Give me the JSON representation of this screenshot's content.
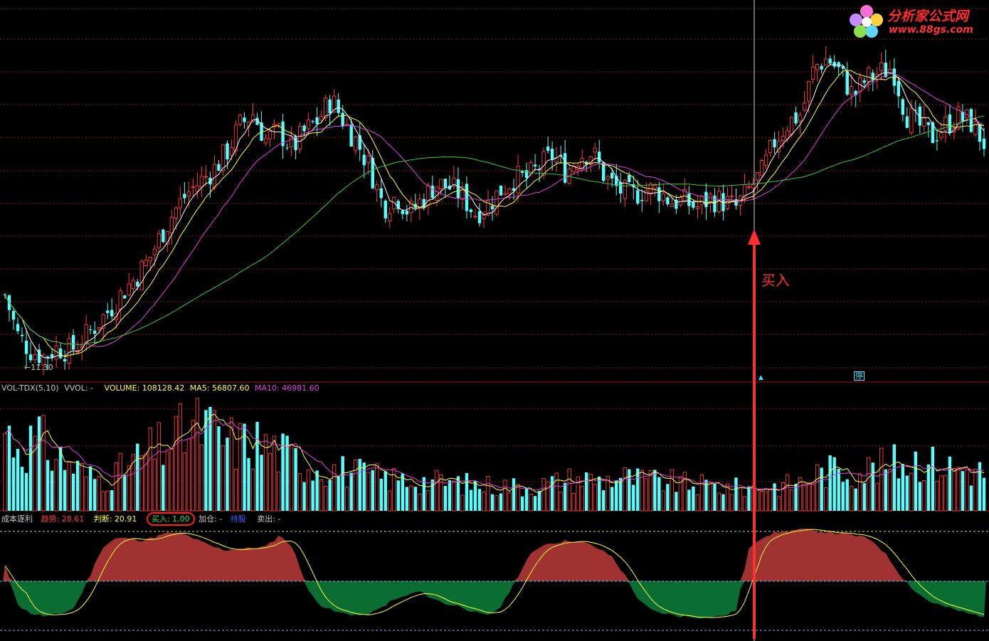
{
  "colors": {
    "background": "#000000",
    "up": "#ff3c3c",
    "down": "#54ffff",
    "ma_white": "#ffffff",
    "ma_yellow": "#ffff40",
    "ma_magenta": "#e040e0",
    "ma_green": "#40c840",
    "grid": "#8a1c1c",
    "fill_red": "#a03232",
    "fill_green": "#0a6e32",
    "arrow": "#ff3030"
  },
  "main": {
    "low_marker": "←11.30",
    "buy_annotation": "买入",
    "stop_marker": "停",
    "up_marker": "▲",
    "logo_text": "分析家公式网",
    "logo_url": "www.88gs.com"
  },
  "volume_panel": {
    "title": "VOL-TDX(5,10)",
    "vvol": "VVOL: -",
    "volume": "VOLUME: 108128.42",
    "ma5": "MA5: 56807.60",
    "ma10": "MA10: 46981.60"
  },
  "indicator_panel": {
    "name": "成本逐利",
    "trend": "趋势:",
    "trend_value": "28.61",
    "judge": "判断:",
    "judge_value": "20.91",
    "buy": "买入: 1.00",
    "add": "加仓: -",
    "hold": "持股",
    "sell": "卖出: -"
  },
  "chart_data": [
    {
      "type": "candlestick",
      "title": "",
      "price_path": [
        13.4,
        12.0,
        11.5,
        11.3,
        11.6,
        11.5,
        11.9,
        12.4,
        12.9,
        13.5,
        14.0,
        14.6,
        15.5,
        16.3,
        16.9,
        17.3,
        17.7,
        18.3,
        19.2,
        19.6,
        18.7,
        19.0,
        18.4,
        19.0,
        19.4,
        20.1,
        19.3,
        18.6,
        17.7,
        16.4,
        16.8,
        16.2,
        16.7,
        17.2,
        17.1,
        16.8,
        16.2,
        16.5,
        17.0,
        17.4,
        17.4,
        17.8,
        18.2,
        17.6,
        18.2,
        18.3,
        17.4,
        17.0,
        16.8,
        17.0,
        17.0,
        16.6,
        16.6,
        16.4,
        16.7,
        16.6,
        16.4,
        17.0,
        17.6,
        18.7,
        19.3,
        19.6,
        21.2,
        21.5,
        21.0,
        20.2,
        20.8,
        21.0,
        21.2,
        19.6,
        19.2,
        18.8,
        19.2,
        19.5,
        19.3,
        18.6
      ],
      "moving_averages": [
        "MA5",
        "MA10",
        "MA20",
        "MA60"
      ],
      "low_label": 11.3
    },
    {
      "type": "bar",
      "title": "VOL-TDX(5,10)",
      "volume_path": [
        0.7,
        0.55,
        0.62,
        0.48,
        0.4,
        0.3,
        0.28,
        0.35,
        0.45,
        0.52,
        0.6,
        0.68,
        0.74,
        0.62,
        0.58,
        0.6,
        0.55,
        0.48,
        0.42,
        0.38,
        0.36,
        0.33,
        0.3,
        0.28,
        0.27,
        0.26,
        0.25,
        0.24,
        0.23,
        0.22,
        0.22,
        0.21,
        0.22,
        0.24,
        0.27,
        0.28,
        0.26,
        0.3,
        0.27,
        0.26,
        0.25,
        0.23,
        0.22,
        0.21,
        0.2,
        0.2,
        0.21,
        0.22,
        0.25,
        0.32,
        0.36,
        0.34,
        0.36,
        0.38,
        0.42,
        0.45,
        0.4,
        0.38,
        0.36,
        0.33
      ],
      "series_labels": [
        "VOLUME",
        "MA5",
        "MA10"
      ]
    },
    {
      "type": "area",
      "title": "成本逐利",
      "trend_path": [
        60,
        20,
        12,
        10,
        12,
        18,
        45,
        78,
        88,
        88,
        86,
        90,
        94,
        92,
        86,
        80,
        76,
        78,
        78,
        80,
        92,
        75,
        35,
        20,
        14,
        12,
        10,
        16,
        25,
        30,
        35,
        28,
        22,
        20,
        14,
        10,
        20,
        45,
        70,
        82,
        84,
        86,
        84,
        78,
        70,
        50,
        25,
        15,
        12,
        10,
        9,
        9,
        10,
        15,
        80,
        90,
        94,
        96,
        97,
        95,
        94,
        92,
        90,
        85,
        70,
        50,
        35,
        25,
        20,
        16,
        12,
        10
      ]
    }
  ]
}
